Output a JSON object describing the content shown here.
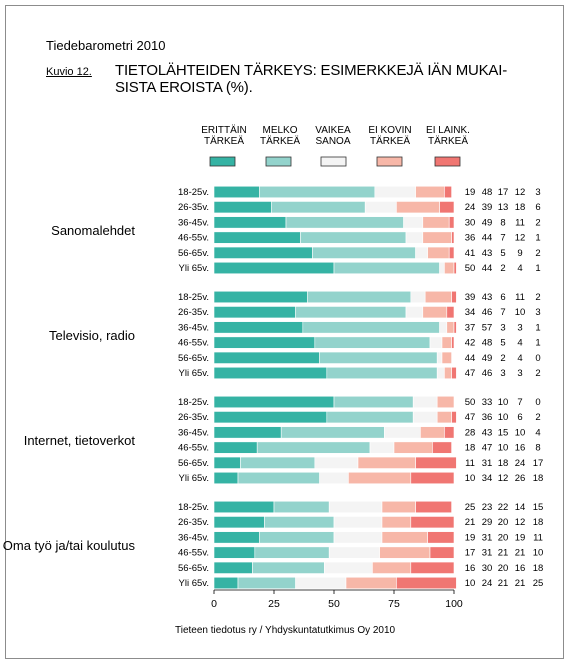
{
  "header": {
    "barometer": "Tiedebarometri 2010",
    "figure_label": "Kuvio 12.",
    "title_line1": "TIETOLÄHTEIDEN TÄRKEYS: ESIMERKKEJÄ IÄN MUKAI-",
    "title_line2": "SISTA EROISTA (%)."
  },
  "legend": [
    {
      "line1": "ERITTÄIN",
      "line2": "TÄRKEÄ",
      "color": "#35b3a4"
    },
    {
      "line1": "MELKO",
      "line2": "TÄRKEÄ",
      "color": "#93d3cc"
    },
    {
      "line1": "VAIKEA",
      "line2": "SANOA",
      "color": "#f4f4f4"
    },
    {
      "line1": "EI KOVIN",
      "line2": "TÄRKEÄ",
      "color": "#f7b7a8"
    },
    {
      "line1": "EI LAINK.",
      "line2": "TÄRKEÄ",
      "color": "#f07672"
    }
  ],
  "footer": "Tieteen tiedotus ry / Yhdyskuntatutkimus Oy 2010",
  "chart_data": {
    "type": "bar",
    "orientation": "horizontal",
    "stacked": true,
    "xlim": [
      0,
      100
    ],
    "xticks": [
      "0",
      "25",
      "50",
      "75",
      "100"
    ],
    "series_names": [
      "ERITTÄIN TÄRKEÄ",
      "MELKO TÄRKEÄ",
      "VAIKEA SANOA",
      "EI KOVIN TÄRKEÄ",
      "EI LAINK. TÄRKEÄ"
    ],
    "colors": [
      "#35b3a4",
      "#93d3cc",
      "#f4f4f4",
      "#f7b7a8",
      "#f07672"
    ],
    "groups": [
      {
        "name": "Sanomalehdet",
        "rows": [
          {
            "label": "18-25v.",
            "values": [
              19,
              48,
              17,
              12,
              3
            ]
          },
          {
            "label": "26-35v.",
            "values": [
              24,
              39,
              13,
              18,
              6
            ]
          },
          {
            "label": "36-45v.",
            "values": [
              30,
              49,
              8,
              11,
              2
            ]
          },
          {
            "label": "46-55v.",
            "values": [
              36,
              44,
              7,
              12,
              1
            ]
          },
          {
            "label": "56-65v.",
            "values": [
              41,
              43,
              5,
              9,
              2
            ]
          },
          {
            "label": "Yli 65v.",
            "values": [
              50,
              44,
              2,
              4,
              1
            ]
          }
        ]
      },
      {
        "name": "Televisio, radio",
        "rows": [
          {
            "label": "18-25v.",
            "values": [
              39,
              43,
              6,
              11,
              2
            ]
          },
          {
            "label": "26-35v.",
            "values": [
              34,
              46,
              7,
              10,
              3
            ]
          },
          {
            "label": "36-45v.",
            "values": [
              37,
              57,
              3,
              3,
              1
            ]
          },
          {
            "label": "46-55v.",
            "values": [
              42,
              48,
              5,
              4,
              1
            ]
          },
          {
            "label": "56-65v.",
            "values": [
              44,
              49,
              2,
              4,
              0
            ]
          },
          {
            "label": "Yli 65v.",
            "values": [
              47,
              46,
              3,
              3,
              2
            ]
          }
        ]
      },
      {
        "name": "Internet, tietoverkot",
        "rows": [
          {
            "label": "18-25v.",
            "values": [
              50,
              33,
              10,
              7,
              0
            ]
          },
          {
            "label": "26-35v.",
            "values": [
              47,
              36,
              10,
              6,
              2
            ]
          },
          {
            "label": "36-45v.",
            "values": [
              28,
              43,
              15,
              10,
              4
            ]
          },
          {
            "label": "46-55v.",
            "values": [
              18,
              47,
              10,
              16,
              8
            ]
          },
          {
            "label": "56-65v.",
            "values": [
              11,
              31,
              18,
              24,
              17
            ]
          },
          {
            "label": "Yli 65v.",
            "values": [
              10,
              34,
              12,
              26,
              18
            ]
          }
        ]
      },
      {
        "name": "Oma työ ja/tai koulutus",
        "rows": [
          {
            "label": "18-25v.",
            "values": [
              25,
              23,
              22,
              14,
              15
            ]
          },
          {
            "label": "26-35v.",
            "values": [
              21,
              29,
              20,
              12,
              18
            ]
          },
          {
            "label": "36-45v.",
            "values": [
              19,
              31,
              20,
              19,
              11
            ]
          },
          {
            "label": "46-55v.",
            "values": [
              17,
              31,
              21,
              21,
              10
            ]
          },
          {
            "label": "56-65v.",
            "values": [
              16,
              30,
              20,
              16,
              18
            ]
          },
          {
            "label": "Yli 65v.",
            "values": [
              10,
              24,
              21,
              21,
              25
            ]
          }
        ]
      }
    ]
  }
}
